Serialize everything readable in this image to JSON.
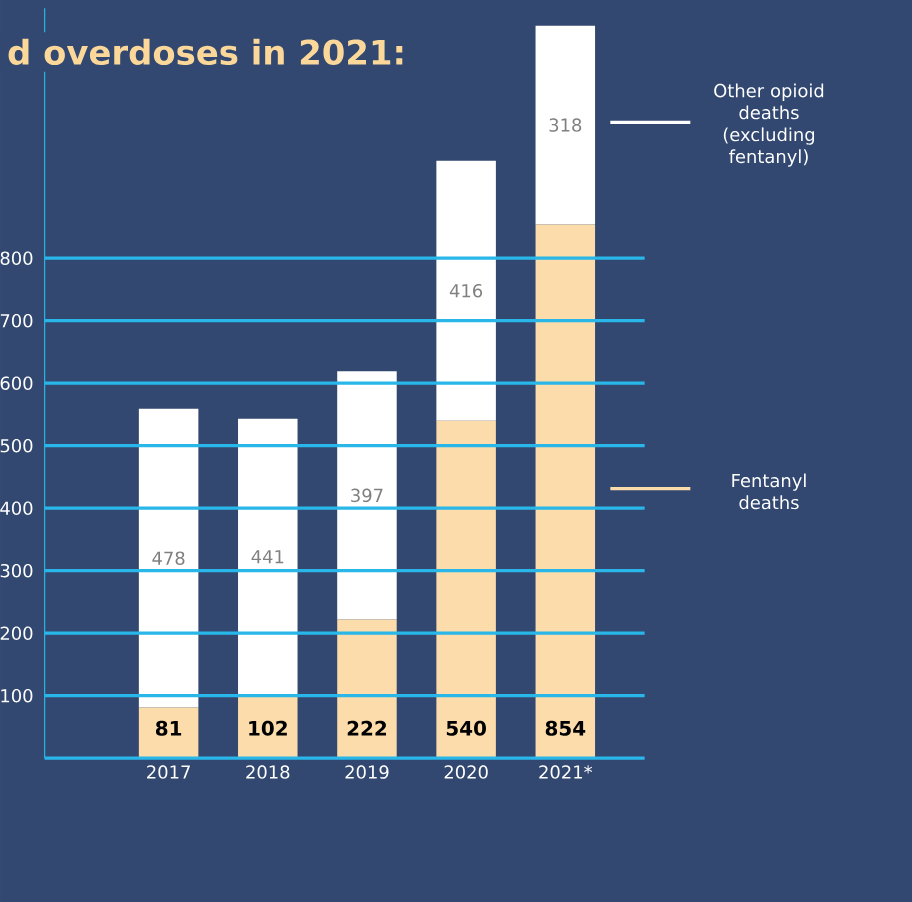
{
  "chart_data": {
    "type": "bar",
    "title": "d overdoses in 2021:",
    "categories": [
      "2017",
      "2018",
      "2019",
      "2020",
      "2021*"
    ],
    "stacked": true,
    "data_labels": true,
    "grid": "y",
    "legend": "right",
    "ylim": [
      0,
      1200
    ],
    "yticks": [
      {
        "value": 0,
        "label": null
      },
      100,
      200,
      300,
      400,
      500,
      600,
      700,
      800
    ],
    "series": [
      {
        "name": "Fentanyl deaths",
        "color": "#fbdcaa",
        "values": [
          81,
          102,
          222,
          540,
          854
        ]
      },
      {
        "name": "Other opioid deaths (excluding fentanyl)",
        "color": "#ffffff",
        "values": [
          478,
          441,
          397,
          416,
          318
        ]
      }
    ]
  }
}
